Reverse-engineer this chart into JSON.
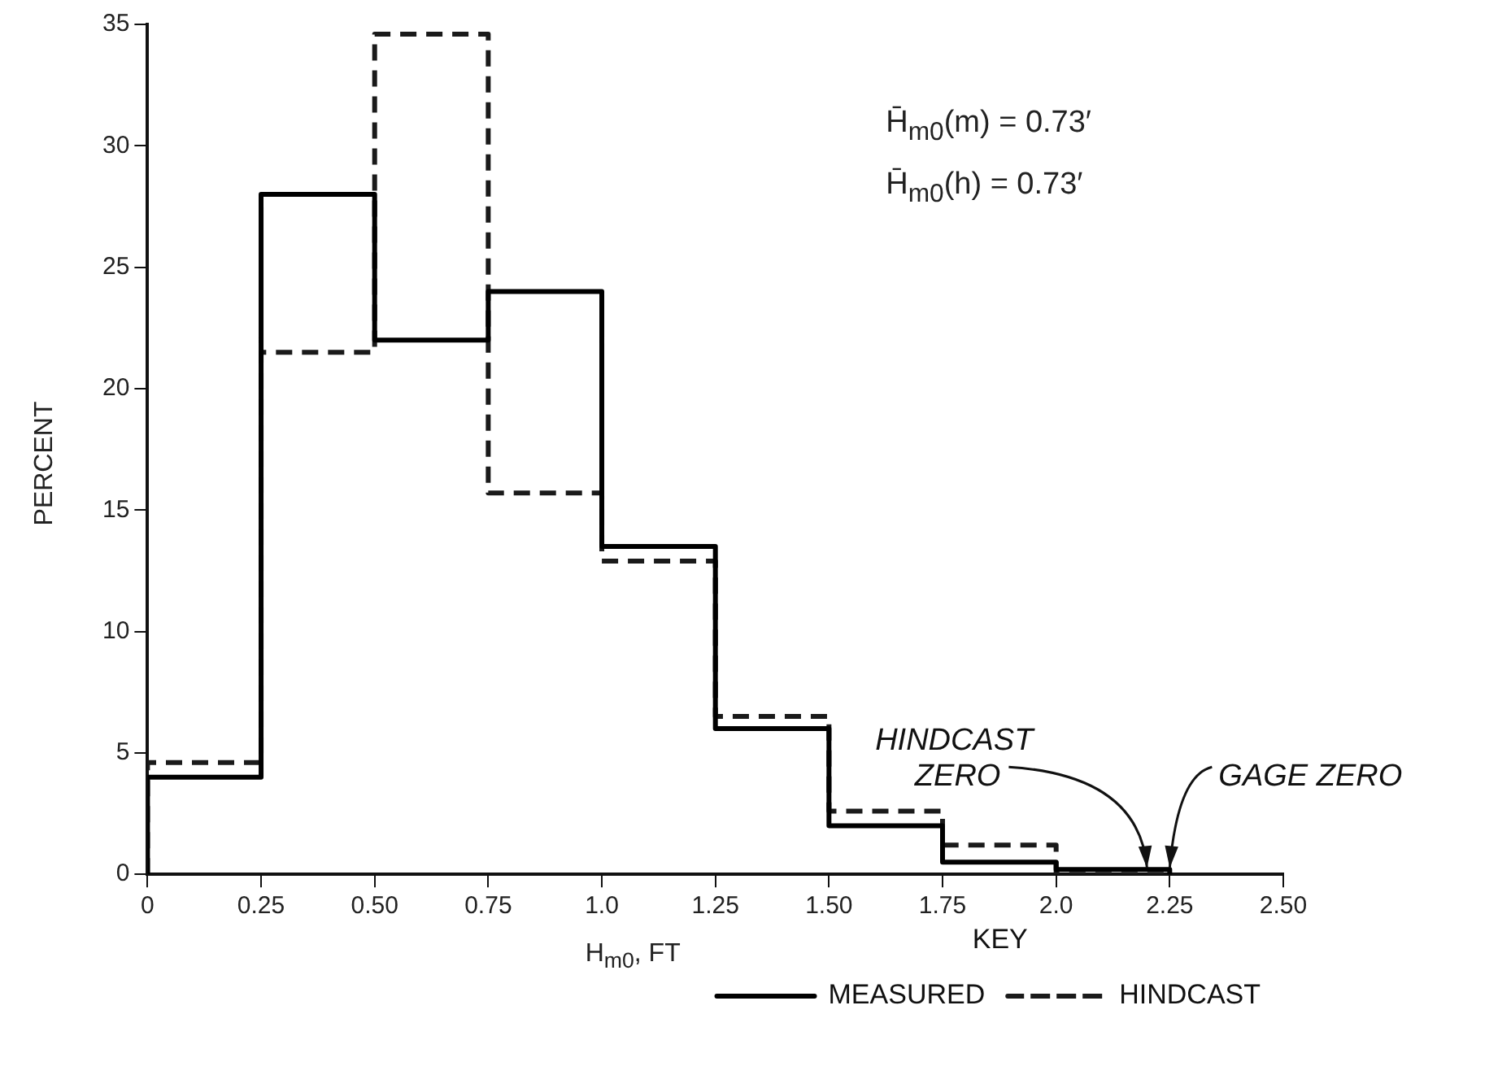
{
  "chart_data": {
    "type": "histogram",
    "xlabel": "H$_{m0}$, FT",
    "ylabel": "PERCENT",
    "legend_title": "KEY",
    "legend": "bottom right",
    "bins": [
      0,
      0.25,
      0.5,
      0.75,
      1.0,
      1.25,
      1.5,
      1.75,
      2.0,
      2.25
    ],
    "series": [
      {
        "name": "MEASURED",
        "color": "#000000",
        "line_style": "solid",
        "values": [
          4,
          28,
          22,
          24,
          13.5,
          6,
          2,
          0.5,
          0.2
        ]
      },
      {
        "name": "HINDCAST",
        "color": "#1a1a1a",
        "line_style": "dashed",
        "values": [
          4.6,
          21.5,
          34.6,
          15.7,
          12.9,
          6.5,
          2.6,
          1.2,
          0
        ]
      }
    ],
    "xlim": [
      0,
      2.5
    ],
    "xticks": [
      0,
      0.25,
      {
        "value": 0.5,
        "label": "0.50"
      },
      0.75,
      {
        "value": 1.0,
        "label": "1.0"
      },
      1.25,
      {
        "value": 1.5,
        "label": "1.50"
      },
      1.75,
      {
        "value": 2.0,
        "label": "2.0"
      },
      2.25,
      {
        "value": 2.5,
        "label": "2.50"
      }
    ],
    "ylim": [
      0,
      35
    ],
    "yticks": [
      0,
      5,
      10,
      15,
      20,
      25,
      30,
      35
    ],
    "grid": false,
    "annotations": [
      "H̄$_{m0}$(m) = 0.73′",
      "H̄$_{m0}$(h) = 0.73′",
      {
        "text": "HINDCAST ZERO",
        "x": 2.2,
        "y": 0
      },
      {
        "text": "GAGE ZERO",
        "x": 2.25,
        "y": 0
      }
    ]
  }
}
